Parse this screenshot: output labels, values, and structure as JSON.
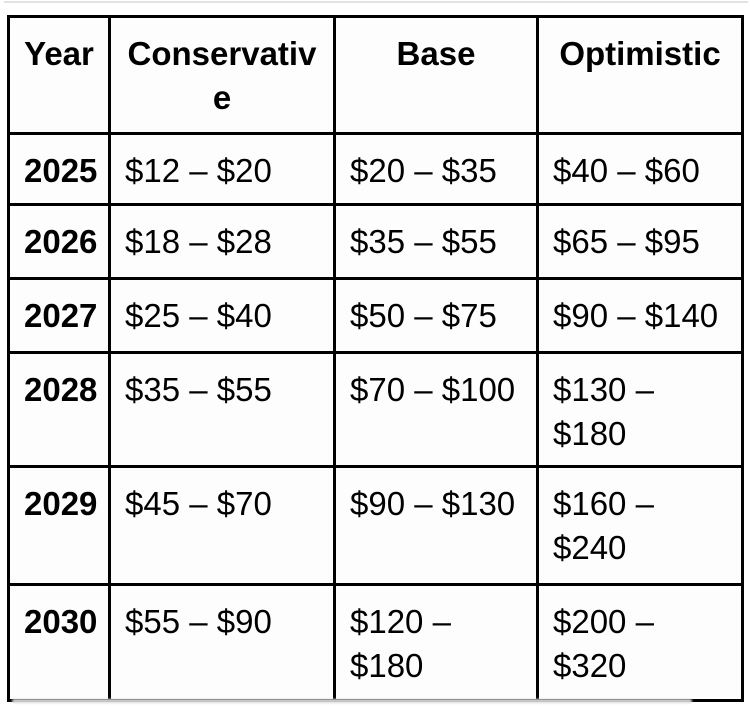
{
  "chart_data": {
    "type": "table",
    "title": "",
    "columns": [
      "Year",
      "Conservative",
      "Base",
      "Optimistic"
    ],
    "header_display": [
      "Year",
      "Conservativ\ne",
      "Base",
      "Optimistic"
    ],
    "rows_display": [
      [
        "2025",
        "$12 – $20",
        "$20 – $35",
        "$40 – $60"
      ],
      [
        "2026",
        "$18 – $28",
        "$35 – $55",
        "$65 – $95"
      ],
      [
        "2027",
        "$25 – $40",
        "$50 – $75",
        "$90 – $140"
      ],
      [
        "2028",
        "$35 – $55",
        "$70 – $100",
        "$130 –\n$180"
      ],
      [
        "2029",
        "$45 – $70",
        "$90 – $130",
        "$160 –\n$240"
      ],
      [
        "2030",
        "$55 – $90",
        "$120 –\n$180",
        "$200 –\n$320"
      ]
    ],
    "rows_numeric": [
      {
        "year": 2025,
        "conservative": [
          12,
          20
        ],
        "base": [
          20,
          35
        ],
        "optimistic": [
          40,
          60
        ]
      },
      {
        "year": 2026,
        "conservative": [
          18,
          28
        ],
        "base": [
          35,
          55
        ],
        "optimistic": [
          65,
          95
        ]
      },
      {
        "year": 2027,
        "conservative": [
          25,
          40
        ],
        "base": [
          50,
          75
        ],
        "optimistic": [
          90,
          140
        ]
      },
      {
        "year": 2028,
        "conservative": [
          35,
          55
        ],
        "base": [
          70,
          100
        ],
        "optimistic": [
          130,
          180
        ]
      },
      {
        "year": 2029,
        "conservative": [
          45,
          70
        ],
        "base": [
          90,
          130
        ],
        "optimistic": [
          160,
          240
        ]
      },
      {
        "year": 2030,
        "conservative": [
          55,
          90
        ],
        "base": [
          120,
          180
        ],
        "optimistic": [
          200,
          320
        ]
      }
    ],
    "layout_hints": {
      "grid": "full-borders",
      "header_bold": true,
      "year_column_bold": true,
      "value_alignment": "left",
      "header_alignment": "center"
    }
  },
  "colors": {
    "border": "#000000",
    "text": "#000000",
    "cell_background": "#fdfdfd",
    "page_background": "#ffffff"
  }
}
